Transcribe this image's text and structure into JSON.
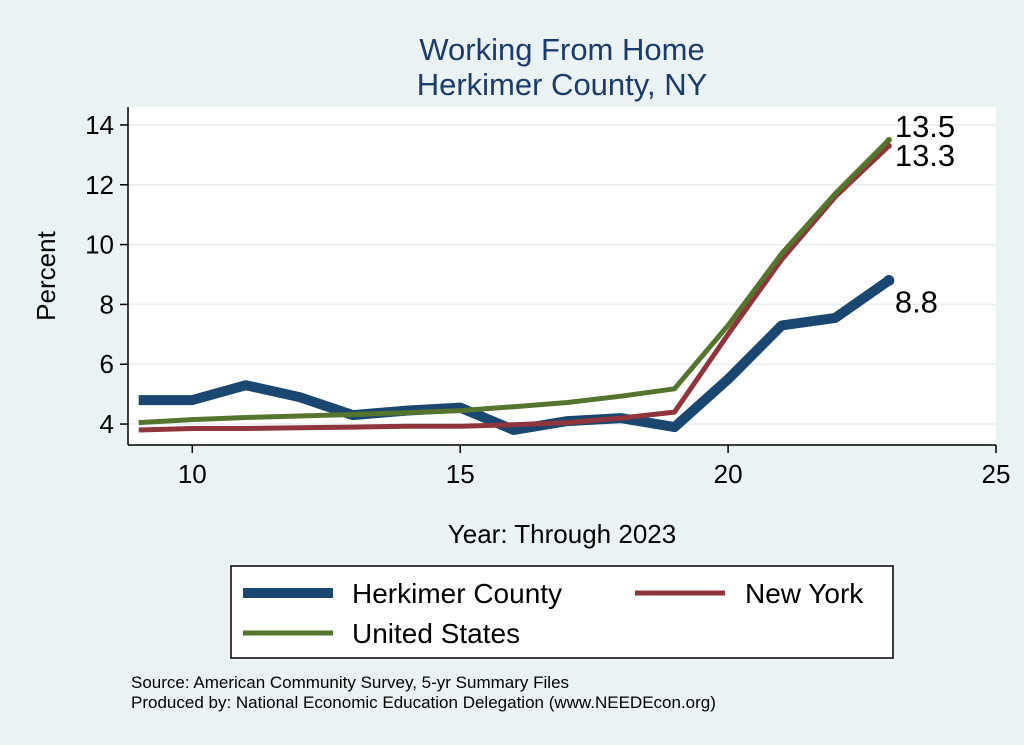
{
  "chart_data": {
    "type": "line",
    "title": [
      "Working From Home",
      "Herkimer County, NY"
    ],
    "xlabel": "Year: Through 2023",
    "ylabel": "Percent",
    "xlim": [
      8.8,
      25
    ],
    "ylim": [
      3.3,
      14.6
    ],
    "xticks": [
      10,
      15,
      20,
      25
    ],
    "yticks": [
      4,
      6,
      8,
      10,
      12,
      14
    ],
    "grid": true,
    "legend_position": "bottom",
    "series": [
      {
        "name": "Herkimer County",
        "color": "#1a476f",
        "width": 10,
        "x": [
          9,
          10,
          11,
          12,
          13,
          14,
          15,
          16,
          17,
          18,
          19,
          20,
          21,
          22,
          23
        ],
        "y": [
          4.8,
          4.8,
          5.3,
          4.9,
          4.3,
          4.45,
          4.55,
          3.8,
          4.1,
          4.2,
          3.9,
          5.5,
          7.3,
          7.55,
          8.8
        ],
        "end_label": "8.8"
      },
      {
        "name": "New York",
        "color": "#90353b",
        "width": 5,
        "x": [
          9,
          10,
          11,
          12,
          13,
          14,
          15,
          16,
          17,
          18,
          19,
          20,
          21,
          22,
          23
        ],
        "y": [
          3.8,
          3.85,
          3.85,
          3.88,
          3.9,
          3.93,
          3.93,
          3.98,
          4.05,
          4.2,
          4.4,
          7.0,
          9.5,
          11.6,
          13.3
        ],
        "end_label": "13.3"
      },
      {
        "name": "United States",
        "color": "#55752f",
        "width": 5,
        "x": [
          9,
          10,
          11,
          12,
          13,
          14,
          15,
          16,
          17,
          18,
          19,
          20,
          21,
          22,
          23
        ],
        "y": [
          4.05,
          4.15,
          4.22,
          4.27,
          4.32,
          4.38,
          4.45,
          4.58,
          4.72,
          4.93,
          5.18,
          7.3,
          9.7,
          11.7,
          13.5
        ],
        "end_label": "13.5"
      }
    ]
  },
  "notes": {
    "source": "Source: American Community Survey, 5-yr Summary Files",
    "produced": "Produced by: National Economic Education Delegation (www.NEEDEcon.org)"
  }
}
